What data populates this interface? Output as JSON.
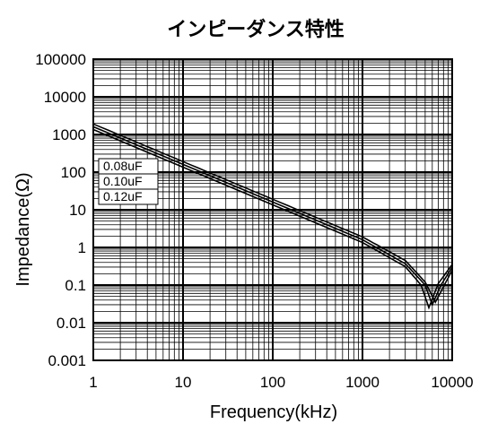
{
  "chart_data": {
    "type": "line",
    "title": "インピーダンス特性",
    "xlabel": "Frequency(kHz)",
    "ylabel": "Impedance(Ω)",
    "x_scale": "log",
    "y_scale": "log",
    "xlim": [
      1,
      10000
    ],
    "ylim": [
      0.001,
      100000
    ],
    "x_ticks": [
      "1",
      "10",
      "100",
      "1000",
      "10000"
    ],
    "y_ticks": [
      "100000",
      "10000",
      "1000",
      "100",
      "10",
      "1",
      "0.1",
      "0.01",
      "0.001"
    ],
    "grid": true,
    "legend_placement": "left, inline labels",
    "series": [
      {
        "name": "0.08uF",
        "x": [
          1,
          10,
          100,
          1000,
          3000,
          5000,
          6500,
          8000,
          10000
        ],
        "y": [
          1900,
          190,
          19,
          1.9,
          0.45,
          0.12,
          0.035,
          0.09,
          0.25
        ]
      },
      {
        "name": "0.10uF",
        "x": [
          1,
          10,
          100,
          1000,
          3000,
          5000,
          6000,
          7500,
          10000
        ],
        "y": [
          1600,
          160,
          16,
          1.6,
          0.37,
          0.1,
          0.03,
          0.1,
          0.3
        ]
      },
      {
        "name": "0.12uF",
        "x": [
          1,
          10,
          100,
          1000,
          3000,
          4500,
          5500,
          7000,
          10000
        ],
        "y": [
          1350,
          135,
          13.5,
          1.35,
          0.31,
          0.1,
          0.025,
          0.11,
          0.35
        ]
      }
    ]
  }
}
